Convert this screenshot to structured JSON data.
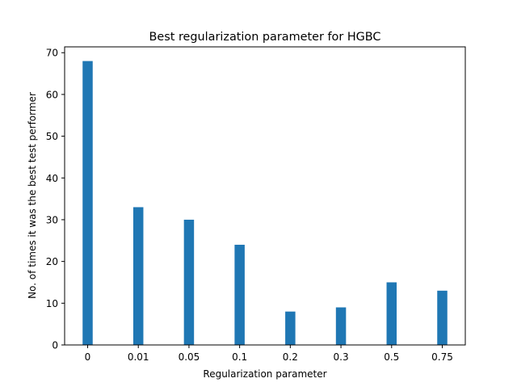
{
  "chart_data": {
    "type": "bar",
    "title": "Best regularization parameter for HGBC",
    "xlabel": "Regularization parameter",
    "ylabel": "No. of times it was the best test performer",
    "categories": [
      "0",
      "0.01",
      "0.05",
      "0.1",
      "0.2",
      "0.3",
      "0.5",
      "0.75"
    ],
    "values": [
      68,
      33,
      30,
      24,
      8,
      9,
      15,
      13
    ],
    "ylim": [
      0,
      71.4
    ],
    "yticks": [
      0,
      10,
      20,
      30,
      40,
      50,
      60,
      70
    ],
    "bar_color": "#1f77b4",
    "grid": false,
    "legend": "none"
  }
}
